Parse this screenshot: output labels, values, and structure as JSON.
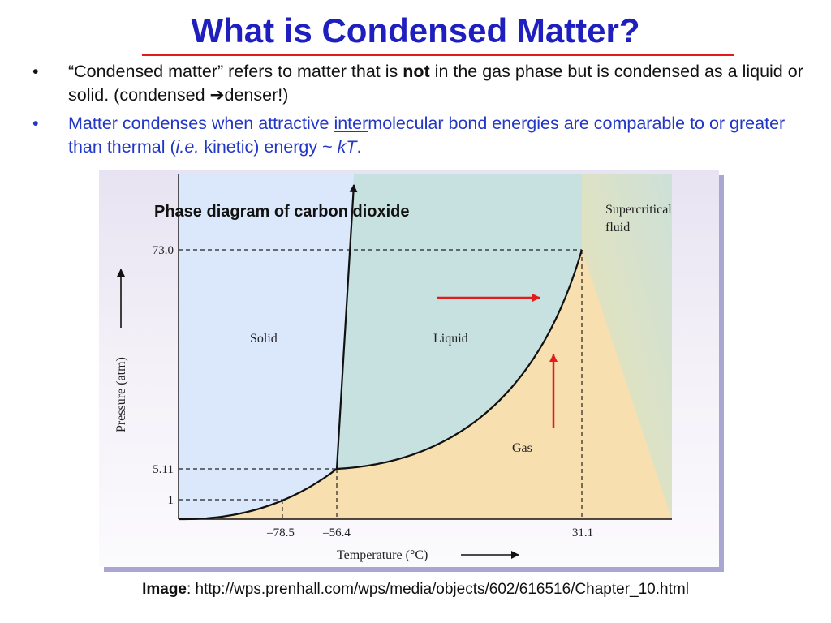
{
  "slide": {
    "title": "What is Condensed Matter?",
    "bullets": [
      {
        "marker": "•",
        "text_before": "“Condensed matter” refers to matter that is ",
        "bold": "not",
        "text_after": " in the gas phase but is condensed as a liquid or solid.  (condensed ",
        "arrow": "➔",
        "text_end": "denser!)"
      },
      {
        "marker": "•",
        "text_before": "Matter condenses when attractive ",
        "underlined": "inter",
        "text_mid": "molecular bond energies are comparable to or greater than thermal (",
        "italic1": "i.e.",
        "text_mid2": " kinetic) energy ~ ",
        "italic2": "kT",
        "text_end": "."
      }
    ],
    "caption": {
      "label": "Image",
      "text": ": http://wps.prenhall.com/wps/media/objects/602/616516/Chapter_10.html"
    }
  },
  "diagram": {
    "heading": "Phase diagram of carbon dioxide",
    "regions": {
      "solid": "Solid",
      "liquid": "Liquid",
      "gas": "Gas",
      "supercritical_line1": "Supercritical",
      "supercritical_line2": "fluid"
    },
    "y_ticks": [
      "73.0",
      "5.11",
      "1"
    ],
    "x_ticks": [
      "–78.5",
      "–56.4",
      "31.1"
    ],
    "ylabel": "Pressure (atm)",
    "xlabel": "Temperature (°C)",
    "colors": {
      "solid": "#dbe8fb",
      "liquid": "#c6e1df",
      "gas": "#f7dfb0",
      "frame_shadow": "#a9a6d4",
      "title": "#1f1fbf",
      "rule": "#e31b1b",
      "bullet2": "#2236c8",
      "arrows": "#e31b1b"
    }
  }
}
